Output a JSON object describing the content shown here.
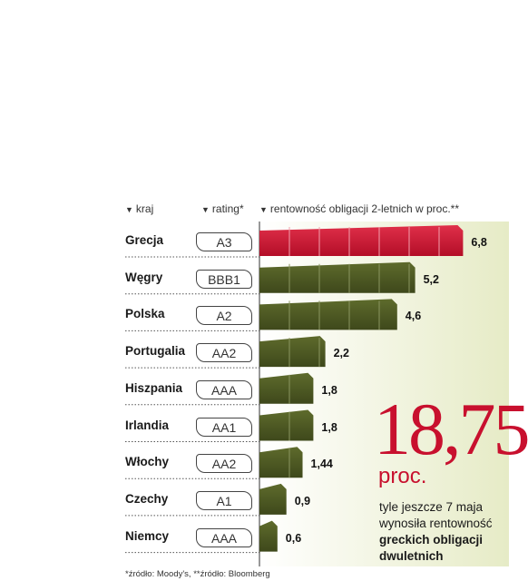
{
  "headers": {
    "country": "kraj",
    "rating": "rating*",
    "yield": "rentowność obligacji 2-letnich w proc.**"
  },
  "chart_data": {
    "type": "bar",
    "orientation": "horizontal",
    "title": "",
    "xlabel": "rentowność obligacji 2-letnich w proc.**",
    "categories": [
      "Grecja",
      "Węgry",
      "Polska",
      "Portugalia",
      "Hiszpania",
      "Irlandia",
      "Włochy",
      "Czechy",
      "Niemcy"
    ],
    "ratings": [
      "A3",
      "BBB1",
      "A2",
      "AA2",
      "AAA",
      "AA1",
      "AA2",
      "A1",
      "AAA"
    ],
    "values": [
      6.8,
      5.2,
      4.6,
      2.2,
      1.8,
      1.8,
      1.44,
      0.9,
      0.6
    ],
    "value_labels": [
      "6,8",
      "5,2",
      "4,6",
      "2,2",
      "1,8",
      "1,8",
      "1,44",
      "0,9",
      "0,6"
    ],
    "xlim": [
      0,
      7
    ],
    "colors": {
      "highlight": "#c8102e",
      "bars": "#4d5a22",
      "background_gradient": "#e8eccd"
    },
    "highlight_index": 0
  },
  "callout": {
    "number": "18,75",
    "unit": "proc.",
    "text_line1": "tyle jeszcze 7 maja",
    "text_line2": "wynosiła rentowność",
    "text_bold1": "greckich obligacji",
    "text_bold2": "dwuletnich"
  },
  "source": "*źródło: Moody's, **źródło: Bloomberg"
}
